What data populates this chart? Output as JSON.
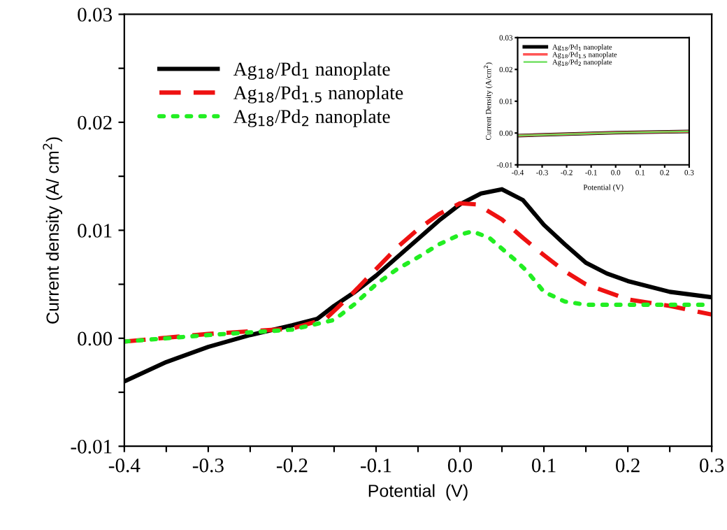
{
  "chart_data": [
    {
      "type": "line",
      "xlabel": "Potential  (V)",
      "ylabel": "Current density (A/ cm$^{2}$)",
      "legend": "top left",
      "grid": false,
      "xlim": [
        -0.4,
        0.3
      ],
      "ylim": [
        -0.01,
        0.03
      ],
      "xticks": [
        {
          "value": -0.4,
          "label": "-0.4"
        },
        {
          "value": -0.35,
          "label": null
        },
        {
          "value": -0.3,
          "label": "-0.3"
        },
        {
          "value": -0.25,
          "label": null
        },
        {
          "value": -0.2,
          "label": "-0.2"
        },
        {
          "value": -0.15,
          "label": null
        },
        {
          "value": -0.1,
          "label": "-0.1"
        },
        {
          "value": -0.05,
          "label": null
        },
        {
          "value": 0.0,
          "label": "0.0"
        },
        {
          "value": 0.05,
          "label": null
        },
        {
          "value": 0.1,
          "label": "0.1"
        },
        {
          "value": 0.15,
          "label": null
        },
        {
          "value": 0.2,
          "label": "0.2"
        },
        {
          "value": 0.25,
          "label": null
        },
        {
          "value": 0.3,
          "label": "0.3"
        }
      ],
      "yticks": [
        {
          "value": -0.01,
          "label": "-0.01"
        },
        {
          "value": -0.005,
          "label": null
        },
        {
          "value": 0.0,
          "label": "0.00"
        },
        {
          "value": 0.005,
          "label": null
        },
        {
          "value": 0.01,
          "label": "0.01"
        },
        {
          "value": 0.015,
          "label": null
        },
        {
          "value": 0.02,
          "label": "0.02"
        },
        {
          "value": 0.025,
          "label": null
        },
        {
          "value": 0.03,
          "label": "0.03"
        }
      ],
      "series": [
        {
          "name": "Ag$_{18}$/Pd$_{1}$ nanoplate",
          "color": "#000000",
          "line_style": "solid",
          "x": [
            -0.4,
            -0.35,
            -0.3,
            -0.25,
            -0.2,
            -0.17,
            -0.15,
            -0.125,
            -0.1,
            -0.075,
            -0.05,
            -0.025,
            0.0,
            0.025,
            0.05,
            0.075,
            0.1,
            0.125,
            0.15,
            0.175,
            0.2,
            0.25,
            0.3
          ],
          "values": [
            -0.004,
            -0.0022,
            -0.0008,
            0.0003,
            0.0012,
            0.0018,
            0.003,
            0.0043,
            0.0058,
            0.0075,
            0.0092,
            0.0109,
            0.0124,
            0.0134,
            0.0138,
            0.0128,
            0.0105,
            0.0087,
            0.007,
            0.006,
            0.0053,
            0.0043,
            0.0038
          ]
        },
        {
          "name": "Ag$_{18}$/Pd$_{1.5}$ nanoplate",
          "color": "#ee1111",
          "line_style": "dashed",
          "x": [
            -0.4,
            -0.3,
            -0.2,
            -0.16,
            -0.13,
            -0.1,
            -0.075,
            -0.05,
            -0.025,
            0.0,
            0.02,
            0.05,
            0.075,
            0.1,
            0.125,
            0.15,
            0.2,
            0.25,
            0.3
          ],
          "values": [
            -0.0003,
            0.0004,
            0.0009,
            0.0018,
            0.004,
            0.0064,
            0.0084,
            0.0101,
            0.0115,
            0.0125,
            0.0124,
            0.011,
            0.0093,
            0.0077,
            0.0062,
            0.005,
            0.0036,
            0.003,
            0.0022
          ]
        },
        {
          "name": "Ag$_{18}$/Pd$_{2}$ nanoplate",
          "color": "#22ee22",
          "line_style": "dotted",
          "x": [
            -0.4,
            -0.3,
            -0.2,
            -0.15,
            -0.125,
            -0.1,
            -0.075,
            -0.05,
            -0.025,
            0.0,
            0.015,
            0.035,
            0.05,
            0.065,
            0.08,
            0.1,
            0.125,
            0.15,
            0.2,
            0.3
          ],
          "values": [
            -0.0003,
            0.0003,
            0.0008,
            0.0017,
            0.0032,
            0.005,
            0.0064,
            0.0075,
            0.0087,
            0.0096,
            0.0099,
            0.0093,
            0.0083,
            0.0073,
            0.0062,
            0.0043,
            0.0034,
            0.0031,
            0.0031,
            0.0031
          ]
        }
      ]
    },
    {
      "type": "line",
      "xlabel": "Potential (V)",
      "ylabel": "Current Density (A/cm$^{2}$)",
      "legend": "top left",
      "grid": false,
      "xlim": [
        -0.4,
        0.3
      ],
      "ylim": [
        -0.01,
        0.03
      ],
      "xticks": [
        {
          "value": -0.4,
          "label": "-0.4"
        },
        {
          "value": -0.3,
          "label": "-0.3"
        },
        {
          "value": -0.2,
          "label": "-0.2"
        },
        {
          "value": -0.1,
          "label": "-0.1"
        },
        {
          "value": 0.0,
          "label": "0.0"
        },
        {
          "value": 0.1,
          "label": "0.1"
        },
        {
          "value": 0.2,
          "label": "0.2"
        },
        {
          "value": 0.3,
          "label": "0.3"
        }
      ],
      "yticks": [
        {
          "value": -0.01,
          "label": "-0.01"
        },
        {
          "value": 0.0,
          "label": "0.00"
        },
        {
          "value": 0.01,
          "label": "0.01"
        },
        {
          "value": 0.02,
          "label": "0.02"
        },
        {
          "value": 0.03,
          "label": "0.03"
        }
      ],
      "series": [
        {
          "name": "Ag$_{18}$/Pd$_{1}$ nanoplate",
          "color": "#000000",
          "line_style": "solid",
          "x": [
            -0.4,
            0.0,
            0.3
          ],
          "values": [
            -0.0008,
            0.0001,
            0.0005
          ]
        },
        {
          "name": "Ag$_{18}$/Pd$_{1.5}$ nanoplate",
          "color": "#ff5555",
          "line_style": "solid",
          "x": [
            -0.4,
            0.0,
            0.3
          ],
          "values": [
            -0.0008,
            0.0001,
            0.0005
          ]
        },
        {
          "name": "Ag$_{18}$/Pd$_{2}$ nanoplate",
          "color": "#66dd55",
          "line_style": "solid",
          "x": [
            -0.4,
            0.0,
            0.3
          ],
          "values": [
            -0.0008,
            0.0001,
            0.0005
          ]
        }
      ]
    }
  ]
}
